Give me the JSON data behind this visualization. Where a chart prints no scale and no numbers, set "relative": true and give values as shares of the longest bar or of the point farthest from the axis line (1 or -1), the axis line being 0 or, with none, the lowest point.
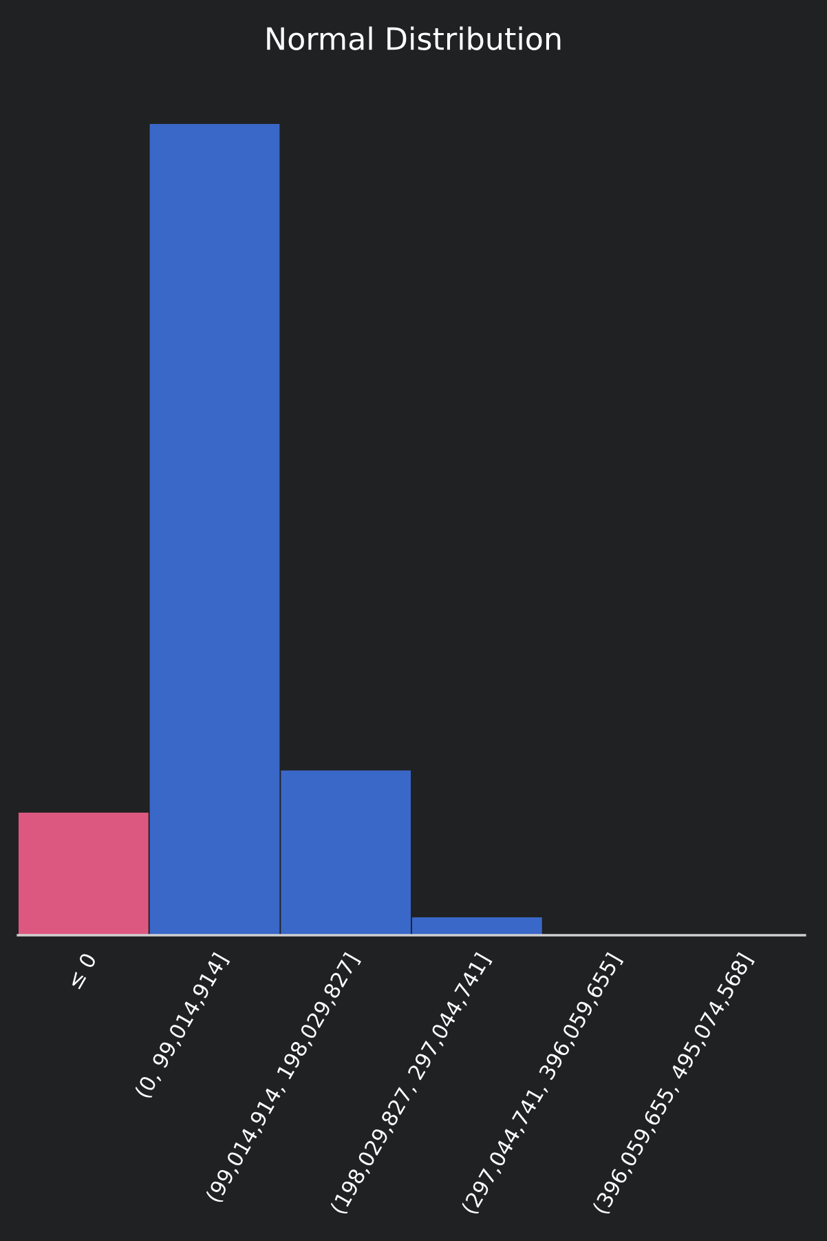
{
  "chart_data": {
    "type": "bar",
    "title": "Normal Distribution",
    "relative": true,
    "categories": [
      "≤ 0",
      "(0, 99,014,914]",
      "(99,014,914, 198,029,827]",
      "(198,029,827, 297,044,741]",
      "(297,044,741, 396,059,655]",
      "(396,059,655, 495,074,568]"
    ],
    "values": [
      0.151,
      1,
      0.203,
      0.022,
      0,
      0
    ],
    "colors": [
      "#dd5880",
      "#3a68c8",
      "#3a68c8",
      "#3a68c8",
      "#3a68c8",
      "#3a68c8"
    ],
    "grid": false,
    "legend": false
  }
}
